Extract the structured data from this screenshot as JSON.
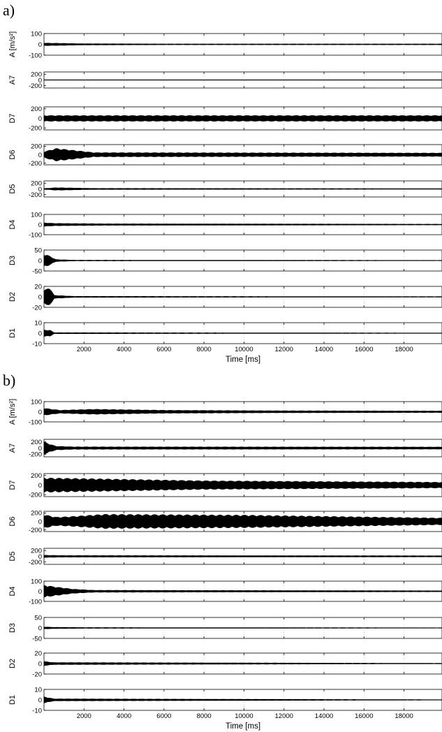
{
  "figure": {
    "colors": {
      "signal": "#000000",
      "axes": "#000000",
      "background": "#ffffff"
    },
    "xaxis": {
      "label": "Time [ms]",
      "ticks": [
        2000,
        4000,
        6000,
        8000,
        10000,
        12000,
        14000,
        16000,
        18000
      ],
      "range": [
        0,
        19900
      ]
    }
  },
  "chart_data": [
    {
      "panel": "a)",
      "type": "line",
      "xlabel": "Time [ms]",
      "xlim": [
        0,
        19900
      ],
      "series": [
        {
          "name": "A",
          "ylabel": "A [m/s²]",
          "ylim": [
            -100,
            100
          ],
          "yticks": [
            -100,
            0,
            100
          ],
          "envelope": [
            [
              0,
              12
            ],
            [
              800,
              10
            ],
            [
              2000,
              6
            ],
            [
              6000,
              4
            ],
            [
              12000,
              4
            ],
            [
              19900,
              4
            ]
          ]
        },
        {
          "name": "A7",
          "ylabel": "A7",
          "ylim": [
            -280,
            280
          ],
          "yticks": [
            -200,
            0,
            200
          ],
          "envelope": [
            [
              0,
              8
            ],
            [
              19900,
              8
            ]
          ]
        },
        {
          "name": "D7",
          "ylabel": "D7",
          "ylim": [
            -240,
            240
          ],
          "yticks": [
            -200,
            0,
            200
          ],
          "envelope": [
            [
              0,
              60
            ],
            [
              19900,
              60
            ]
          ]
        },
        {
          "name": "D6",
          "ylabel": "D6",
          "ylim": [
            -240,
            240
          ],
          "yticks": [
            -200,
            0,
            200
          ],
          "envelope": [
            [
              0,
              70
            ],
            [
              600,
              150
            ],
            [
              1200,
              120
            ],
            [
              2500,
              50
            ],
            [
              19900,
              40
            ]
          ]
        },
        {
          "name": "D5",
          "ylabel": "D5",
          "ylim": [
            -280,
            280
          ],
          "yticks": [
            -200,
            0,
            200
          ],
          "envelope": [
            [
              0,
              15
            ],
            [
              600,
              45
            ],
            [
              2500,
              20
            ],
            [
              19900,
              12
            ]
          ]
        },
        {
          "name": "D4",
          "ylabel": "D4",
          "ylim": [
            -100,
            100
          ],
          "yticks": [
            -100,
            0,
            100
          ],
          "envelope": [
            [
              0,
              18
            ],
            [
              500,
              12
            ],
            [
              3000,
              8
            ],
            [
              19900,
              4
            ]
          ]
        },
        {
          "name": "D3",
          "ylabel": "D3",
          "ylim": [
            -50,
            50
          ],
          "yticks": [
            -50,
            0,
            50
          ],
          "envelope": [
            [
              0,
              30
            ],
            [
              200,
              25
            ],
            [
              600,
              5
            ],
            [
              1500,
              2
            ],
            [
              19900,
              1
            ]
          ]
        },
        {
          "name": "D2",
          "ylabel": "D2",
          "ylim": [
            -20,
            20
          ],
          "yticks": [
            -20,
            0,
            20
          ],
          "envelope": [
            [
              0,
              12
            ],
            [
              300,
              18
            ],
            [
              500,
              3
            ],
            [
              1500,
              1
            ],
            [
              19900,
              0.5
            ]
          ]
        },
        {
          "name": "D1",
          "ylabel": "D1",
          "ylim": [
            -10,
            10
          ],
          "yticks": [
            -10,
            0,
            10
          ],
          "envelope": [
            [
              0,
              3
            ],
            [
              300,
              3
            ],
            [
              500,
              0.5
            ],
            [
              19900,
              0.2
            ]
          ]
        }
      ]
    },
    {
      "panel": "b)",
      "type": "line",
      "xlabel": "Time [ms]",
      "xlim": [
        0,
        19900
      ],
      "series": [
        {
          "name": "A",
          "ylabel": "A [m/s²]",
          "ylim": [
            -100,
            100
          ],
          "yticks": [
            -100,
            0,
            100
          ],
          "envelope": [
            [
              0,
              35
            ],
            [
              800,
              15
            ],
            [
              2500,
              25
            ],
            [
              6000,
              15
            ],
            [
              12000,
              10
            ],
            [
              19900,
              8
            ]
          ]
        },
        {
          "name": "A7",
          "ylabel": "A7",
          "ylim": [
            -280,
            280
          ],
          "yticks": [
            -200,
            0,
            200
          ],
          "envelope": [
            [
              0,
              200
            ],
            [
              200,
              150
            ],
            [
              600,
              60
            ],
            [
              1500,
              40
            ],
            [
              19900,
              35
            ]
          ]
        },
        {
          "name": "D7",
          "ylabel": "D7",
          "ylim": [
            -240,
            240
          ],
          "yticks": [
            -200,
            0,
            200
          ],
          "envelope": [
            [
              0,
              150
            ],
            [
              3000,
              130
            ],
            [
              8000,
              90
            ],
            [
              19900,
              60
            ]
          ]
        },
        {
          "name": "D6",
          "ylabel": "D6",
          "ylim": [
            -240,
            240
          ],
          "yticks": [
            -200,
            0,
            200
          ],
          "envelope": [
            [
              0,
              160
            ],
            [
              600,
              100
            ],
            [
              1500,
              120
            ],
            [
              3000,
              170
            ],
            [
              10000,
              150
            ],
            [
              19900,
              80
            ]
          ]
        },
        {
          "name": "D5",
          "ylabel": "D5",
          "ylim": [
            -280,
            280
          ],
          "yticks": [
            -200,
            0,
            200
          ],
          "envelope": [
            [
              0,
              40
            ],
            [
              800,
              30
            ],
            [
              19900,
              20
            ]
          ]
        },
        {
          "name": "D4",
          "ylabel": "D4",
          "ylim": [
            -100,
            100
          ],
          "yticks": [
            -100,
            0,
            100
          ],
          "envelope": [
            [
              0,
              60
            ],
            [
              500,
              45
            ],
            [
              1500,
              20
            ],
            [
              2500,
              10
            ],
            [
              19900,
              5
            ]
          ]
        },
        {
          "name": "D3",
          "ylabel": "D3",
          "ylim": [
            -50,
            50
          ],
          "yticks": [
            -50,
            0,
            50
          ],
          "envelope": [
            [
              0,
              5
            ],
            [
              500,
              3
            ],
            [
              2000,
              2
            ],
            [
              19900,
              1
            ]
          ]
        },
        {
          "name": "D2",
          "ylabel": "D2",
          "ylim": [
            -20,
            20
          ],
          "yticks": [
            -20,
            0,
            20
          ],
          "envelope": [
            [
              0,
              4
            ],
            [
              500,
              2
            ],
            [
              19900,
              0.5
            ]
          ]
        },
        {
          "name": "D1",
          "ylabel": "D1",
          "ylim": [
            -10,
            10
          ],
          "yticks": [
            -10,
            0,
            10
          ],
          "envelope": [
            [
              0,
              3
            ],
            [
              500,
              1
            ],
            [
              19900,
              0.2
            ]
          ]
        }
      ]
    }
  ]
}
